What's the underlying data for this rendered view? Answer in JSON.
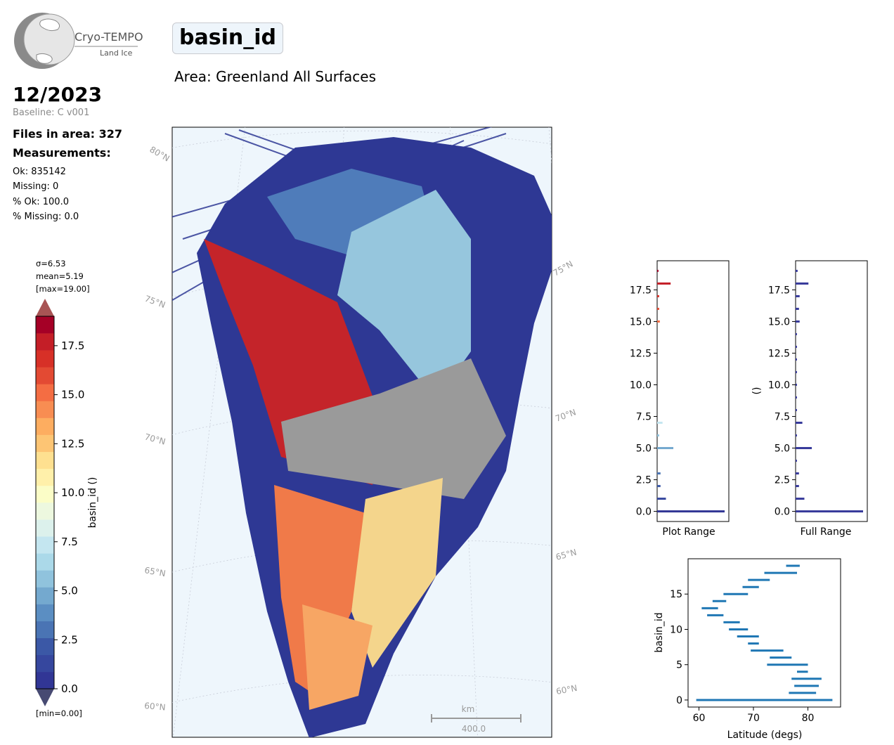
{
  "logo": {
    "name": "Cryo-TEMPO",
    "sub": "Land Ice"
  },
  "header": {
    "period": "12/2023",
    "baseline": "Baseline: C v001"
  },
  "files": "Files in area: 327",
  "measurements": {
    "title": "Measurements:",
    "lines": [
      "Ok: 835142",
      "Missing: 0",
      "% Ok: 100.0",
      "% Missing: 0.0"
    ]
  },
  "title": "basin_id",
  "subtitle": "Area: Greenland All Surfaces",
  "colorbar": {
    "sigma": "σ=6.53",
    "mean": "mean=5.19",
    "max": "[max=19.00]",
    "min": "[min=0.00]",
    "label": "basin_id ()",
    "ticks": [
      "0.0",
      "2.5",
      "5.0",
      "7.5",
      "10.0",
      "12.5",
      "15.0",
      "17.5"
    ],
    "colors": [
      "#313695",
      "#36479e",
      "#3b58a6",
      "#4a74b4",
      "#5b8ec2",
      "#74a9cf",
      "#90c3dd",
      "#abd9e9",
      "#c4e6f0",
      "#dcf1ec",
      "#edf8df",
      "#fbfdc7",
      "#fff0aa",
      "#fee090",
      "#fdc574",
      "#fdad60",
      "#f88d52",
      "#f46d43",
      "#e34a33",
      "#d73027",
      "#c41e27",
      "#a50026"
    ],
    "over": "#a85454",
    "under": "#474a72"
  },
  "map": {
    "lat_labels": [
      "80°N",
      "75°N",
      "70°N",
      "65°N",
      "60°N"
    ],
    "lat_labels_right": [
      "75°N",
      "70°N",
      "65°N",
      "60°N"
    ],
    "scale_label": "km",
    "scale_value": "400.0"
  },
  "chart_data": [
    {
      "type": "bar",
      "orientation": "horizontal",
      "xlabel": "Plot Range",
      "ytick_labels": [
        "0.0",
        "2.5",
        "5.0",
        "7.5",
        "10.0",
        "12.5",
        "15.0",
        "17.5"
      ],
      "ylim": [
        -0.8,
        19.8
      ],
      "values": [
        {
          "y": 0,
          "v": 1.0
        },
        {
          "y": 1,
          "v": 0.13
        },
        {
          "y": 2,
          "v": 0.05
        },
        {
          "y": 3,
          "v": 0.05
        },
        {
          "y": 5,
          "v": 0.24
        },
        {
          "y": 6,
          "v": 0.03
        },
        {
          "y": 7,
          "v": 0.08
        },
        {
          "y": 15,
          "v": 0.04
        },
        {
          "y": 16,
          "v": 0.03
        },
        {
          "y": 17,
          "v": 0.03
        },
        {
          "y": 18,
          "v": 0.2
        },
        {
          "y": 19,
          "v": 0.02
        }
      ]
    },
    {
      "type": "bar",
      "orientation": "horizontal",
      "xlabel": "Full Range",
      "ylabel": "()",
      "ytick_labels": [
        "0.0",
        "2.5",
        "5.0",
        "7.5",
        "10.0",
        "12.5",
        "15.0",
        "17.5"
      ],
      "ylim": [
        -0.8,
        19.8
      ],
      "values": [
        {
          "y": 0,
          "v": 1.0
        },
        {
          "y": 1,
          "v": 0.13
        },
        {
          "y": 2,
          "v": 0.05
        },
        {
          "y": 3,
          "v": 0.05
        },
        {
          "y": 4,
          "v": 0.02
        },
        {
          "y": 5,
          "v": 0.24
        },
        {
          "y": 6,
          "v": 0.02
        },
        {
          "y": 7,
          "v": 0.1
        },
        {
          "y": 8,
          "v": 0.02
        },
        {
          "y": 9,
          "v": 0.02
        },
        {
          "y": 10,
          "v": 0.02
        },
        {
          "y": 11,
          "v": 0.02
        },
        {
          "y": 12,
          "v": 0.02
        },
        {
          "y": 13,
          "v": 0.02
        },
        {
          "y": 14,
          "v": 0.02
        },
        {
          "y": 15,
          "v": 0.06
        },
        {
          "y": 16,
          "v": 0.05
        },
        {
          "y": 17,
          "v": 0.06
        },
        {
          "y": 18,
          "v": 0.19
        },
        {
          "y": 19,
          "v": 0.03
        }
      ]
    },
    {
      "type": "range",
      "orientation": "horizontal",
      "xlabel": "Latitude (degs)",
      "ylabel": "basin_id",
      "xticks": [
        60,
        70,
        80
      ],
      "yticks": [
        0,
        5,
        10,
        15
      ],
      "xlim": [
        58,
        86
      ],
      "ylim": [
        -1,
        20
      ],
      "ranges": [
        {
          "id": 0,
          "min": 59.5,
          "max": 84.5
        },
        {
          "id": 1,
          "min": 76.5,
          "max": 81.5
        },
        {
          "id": 2,
          "min": 77.5,
          "max": 82
        },
        {
          "id": 3,
          "min": 77,
          "max": 82.5
        },
        {
          "id": 4,
          "min": 78,
          "max": 80
        },
        {
          "id": 5,
          "min": 72.5,
          "max": 80
        },
        {
          "id": 6,
          "min": 73,
          "max": 77
        },
        {
          "id": 7,
          "min": 69.5,
          "max": 75.5
        },
        {
          "id": 8,
          "min": 69,
          "max": 71
        },
        {
          "id": 9,
          "min": 67,
          "max": 71
        },
        {
          "id": 10,
          "min": 65.5,
          "max": 69
        },
        {
          "id": 11,
          "min": 64.5,
          "max": 67.5
        },
        {
          "id": 12,
          "min": 61.5,
          "max": 64.5
        },
        {
          "id": 13,
          "min": 60.5,
          "max": 63.5
        },
        {
          "id": 14,
          "min": 62.5,
          "max": 65
        },
        {
          "id": 15,
          "min": 64.5,
          "max": 69
        },
        {
          "id": 16,
          "min": 68,
          "max": 71
        },
        {
          "id": 17,
          "min": 69,
          "max": 73
        },
        {
          "id": 18,
          "min": 72,
          "max": 78
        },
        {
          "id": 19,
          "min": 76,
          "max": 78.5
        }
      ]
    }
  ]
}
